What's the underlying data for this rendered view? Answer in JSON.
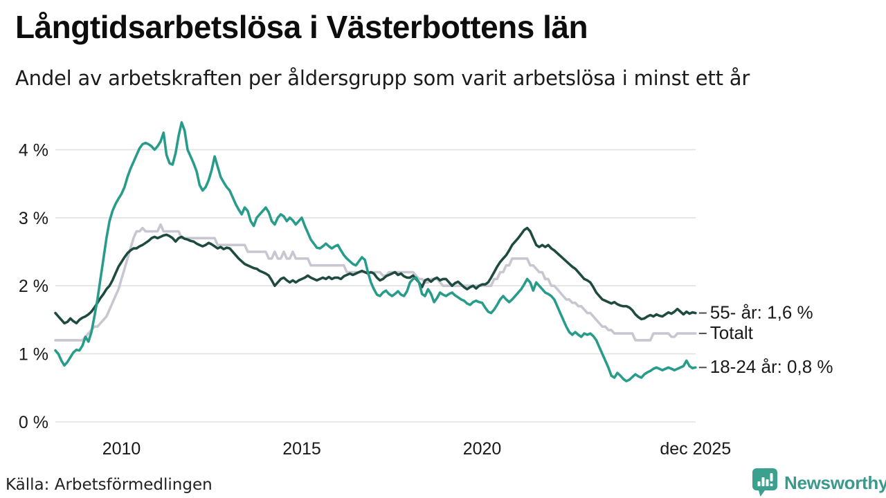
{
  "header": {
    "title": "Långtidsarbetslösa i Västerbottens län",
    "subtitle": "Andel av arbetskraften per åldersgrupp som varit arbetslösa i minst ett år"
  },
  "footer": {
    "source": "Källa: Arbetsförmedlingen",
    "brand": "Newsworthy",
    "brand_color": "#3a9a8a"
  },
  "chart_data": {
    "type": "line",
    "title": "Långtidsarbetslösa i Västerbottens län",
    "subtitle": "Andel av arbetskraften per åldersgrupp som varit arbetslösa i minst ett år",
    "unit": "%",
    "grid": true,
    "legend_position": "right-end-labels",
    "x_start": "2008-03",
    "x_end": "2025-12",
    "points_per_year": 12,
    "ylim": [
      0,
      4.6
    ],
    "y_ticks": [
      {
        "value": 0,
        "label": "0 %"
      },
      {
        "value": 1,
        "label": "1 %"
      },
      {
        "value": 2,
        "label": "2 %"
      },
      {
        "value": 3,
        "label": "3 %"
      },
      {
        "value": 4,
        "label": "4 %"
      }
    ],
    "x_ticks": [
      {
        "t": 2010.0,
        "label": "2010"
      },
      {
        "t": 2015.0,
        "label": "2015"
      },
      {
        "t": 2020.0,
        "label": "2020"
      },
      {
        "t": 2025.917,
        "label": "dec 2025"
      }
    ],
    "series": [
      {
        "name": "Totalt",
        "color": "#c7c6d1",
        "end_label": "Totalt",
        "values": [
          1.2,
          1.2,
          1.2,
          1.2,
          1.2,
          1.2,
          1.2,
          1.2,
          1.2,
          1.2,
          1.25,
          1.3,
          1.35,
          1.4,
          1.4,
          1.45,
          1.5,
          1.55,
          1.65,
          1.75,
          1.85,
          1.95,
          2.1,
          2.25,
          2.4,
          2.55,
          2.7,
          2.8,
          2.8,
          2.85,
          2.8,
          2.8,
          2.8,
          2.8,
          2.8,
          2.9,
          2.8,
          2.8,
          2.8,
          2.8,
          2.8,
          2.8,
          2.7,
          2.7,
          2.7,
          2.7,
          2.7,
          2.7,
          2.7,
          2.7,
          2.7,
          2.7,
          2.7,
          2.7,
          2.6,
          2.6,
          2.6,
          2.6,
          2.6,
          2.6,
          2.6,
          2.6,
          2.6,
          2.6,
          2.5,
          2.5,
          2.5,
          2.5,
          2.5,
          2.5,
          2.5,
          2.4,
          2.4,
          2.5,
          2.4,
          2.4,
          2.5,
          2.4,
          2.4,
          2.5,
          2.4,
          2.4,
          2.4,
          2.4,
          2.4,
          2.3,
          2.3,
          2.3,
          2.3,
          2.3,
          2.3,
          2.3,
          2.3,
          2.3,
          2.3,
          2.3,
          2.3,
          2.2,
          2.2,
          2.2,
          2.2,
          2.2,
          2.2,
          2.2,
          2.2,
          2.2,
          2.2,
          2.2,
          2.2,
          2.15,
          2.15,
          2.2,
          2.2,
          2.2,
          2.2,
          2.2,
          2.2,
          2.2,
          2.2,
          2.2,
          2.15,
          2.1,
          2.1,
          2.05,
          2.05,
          2.1,
          2.1,
          2.1,
          2.05,
          2.0,
          2.0,
          2.0,
          2.0,
          2.0,
          2.0,
          2.0,
          2.0,
          2.0,
          2.0,
          2.0,
          2.0,
          2.0,
          2.0,
          2.0,
          2.0,
          2.0,
          2.1,
          2.1,
          2.2,
          2.2,
          2.3,
          2.3,
          2.4,
          2.4,
          2.4,
          2.4,
          2.4,
          2.4,
          2.3,
          2.3,
          2.25,
          2.2,
          2.2,
          2.1,
          2.1,
          2.0,
          2.0,
          1.95,
          1.9,
          1.85,
          1.8,
          1.8,
          1.75,
          1.75,
          1.7,
          1.7,
          1.65,
          1.6,
          1.6,
          1.55,
          1.5,
          1.45,
          1.4,
          1.4,
          1.35,
          1.35,
          1.3,
          1.3,
          1.3,
          1.3,
          1.3,
          1.3,
          1.3,
          1.2,
          1.2,
          1.2,
          1.2,
          1.2,
          1.2,
          1.3,
          1.3,
          1.3,
          1.3,
          1.3,
          1.3,
          1.25,
          1.25,
          1.3,
          1.3,
          1.3,
          1.3,
          1.3,
          1.3,
          1.3
        ]
      },
      {
        "name": "55- år",
        "color": "#1f4a40",
        "end_label": "55- år: 1,6 %",
        "end_value": "1,6 %",
        "values": [
          1.6,
          1.55,
          1.5,
          1.45,
          1.47,
          1.52,
          1.48,
          1.45,
          1.5,
          1.53,
          1.55,
          1.58,
          1.62,
          1.68,
          1.75,
          1.82,
          1.88,
          1.95,
          2.0,
          2.08,
          2.18,
          2.28,
          2.35,
          2.42,
          2.48,
          2.52,
          2.55,
          2.55,
          2.58,
          2.6,
          2.63,
          2.66,
          2.7,
          2.72,
          2.7,
          2.72,
          2.74,
          2.75,
          2.73,
          2.7,
          2.65,
          2.7,
          2.72,
          2.69,
          2.68,
          2.66,
          2.65,
          2.62,
          2.6,
          2.58,
          2.6,
          2.63,
          2.61,
          2.58,
          2.55,
          2.57,
          2.54,
          2.56,
          2.55,
          2.5,
          2.45,
          2.4,
          2.36,
          2.32,
          2.3,
          2.28,
          2.26,
          2.25,
          2.22,
          2.2,
          2.18,
          2.15,
          2.08,
          2.0,
          2.05,
          2.1,
          2.12,
          2.08,
          2.05,
          2.08,
          2.05,
          2.08,
          2.1,
          2.12,
          2.15,
          2.12,
          2.1,
          2.08,
          2.1,
          2.12,
          2.1,
          2.13,
          2.1,
          2.12,
          2.12,
          2.1,
          2.14,
          2.16,
          2.18,
          2.16,
          2.18,
          2.2,
          2.22,
          2.2,
          2.18,
          2.2,
          2.18,
          2.12,
          2.08,
          2.1,
          2.14,
          2.16,
          2.18,
          2.2,
          2.16,
          2.18,
          2.14,
          2.12,
          2.12,
          2.15,
          2.1,
          2.05,
          1.98,
          2.08,
          2.1,
          2.06,
          2.1,
          2.12,
          2.08,
          2.1,
          2.1,
          2.05,
          2.0,
          2.04,
          2.06,
          2.02,
          1.98,
          1.95,
          1.98,
          2.0,
          1.96,
          2.0,
          2.02,
          2.02,
          2.05,
          2.12,
          2.2,
          2.28,
          2.35,
          2.4,
          2.45,
          2.52,
          2.6,
          2.65,
          2.7,
          2.76,
          2.82,
          2.85,
          2.8,
          2.7,
          2.6,
          2.57,
          2.6,
          2.57,
          2.6,
          2.55,
          2.52,
          2.48,
          2.44,
          2.4,
          2.36,
          2.32,
          2.28,
          2.25,
          2.2,
          2.15,
          2.1,
          2.08,
          2.05,
          1.98,
          1.9,
          1.85,
          1.8,
          1.78,
          1.76,
          1.74,
          1.76,
          1.73,
          1.71,
          1.7,
          1.7,
          1.68,
          1.64,
          1.58,
          1.54,
          1.51,
          1.52,
          1.55,
          1.57,
          1.55,
          1.58,
          1.56,
          1.55,
          1.58,
          1.61,
          1.59,
          1.62,
          1.66,
          1.62,
          1.58,
          1.62,
          1.59,
          1.61,
          1.6
        ]
      },
      {
        "name": "18-24 år",
        "color": "#289c8b",
        "end_label": "18-24 år: 0,8 %",
        "end_value": "0,8 %",
        "values": [
          1.05,
          1.0,
          0.9,
          0.83,
          0.88,
          0.95,
          1.02,
          1.06,
          1.05,
          1.12,
          1.25,
          1.18,
          1.32,
          1.55,
          1.8,
          2.1,
          2.4,
          2.7,
          2.95,
          3.1,
          3.2,
          3.28,
          3.35,
          3.45,
          3.6,
          3.72,
          3.82,
          3.92,
          4.02,
          4.08,
          4.1,
          4.08,
          4.05,
          4.0,
          4.05,
          4.12,
          4.25,
          3.92,
          3.8,
          3.78,
          3.95,
          4.2,
          4.4,
          4.28,
          4.0,
          3.9,
          3.8,
          3.68,
          3.48,
          3.4,
          3.45,
          3.55,
          3.7,
          3.9,
          3.75,
          3.6,
          3.52,
          3.45,
          3.4,
          3.3,
          3.2,
          3.12,
          3.05,
          3.15,
          3.1,
          2.95,
          2.88,
          3.0,
          3.05,
          3.1,
          3.15,
          3.08,
          2.95,
          2.9,
          3.0,
          3.05,
          3.02,
          2.95,
          3.0,
          2.96,
          2.9,
          2.95,
          3.0,
          2.88,
          2.78,
          2.68,
          2.62,
          2.56,
          2.55,
          2.58,
          2.62,
          2.58,
          2.55,
          2.58,
          2.6,
          2.52,
          2.45,
          2.4,
          2.36,
          2.32,
          2.3,
          2.36,
          2.42,
          2.38,
          2.2,
          2.05,
          1.95,
          1.87,
          1.85,
          1.9,
          1.93,
          1.88,
          1.85,
          1.88,
          1.92,
          1.87,
          1.85,
          1.92,
          2.05,
          2.1,
          2.12,
          2.05,
          1.88,
          1.85,
          1.95,
          1.88,
          1.76,
          1.82,
          1.9,
          1.87,
          1.85,
          1.88,
          1.9,
          1.86,
          1.83,
          1.8,
          1.78,
          1.74,
          1.72,
          1.76,
          1.78,
          1.76,
          1.75,
          1.68,
          1.62,
          1.6,
          1.65,
          1.72,
          1.8,
          1.85,
          1.8,
          1.76,
          1.8,
          1.85,
          1.9,
          1.95,
          2.02,
          2.1,
          2.05,
          1.93,
          2.05,
          2.0,
          1.95,
          1.9,
          1.88,
          1.85,
          1.8,
          1.7,
          1.6,
          1.5,
          1.4,
          1.32,
          1.28,
          1.32,
          1.28,
          1.25,
          1.3,
          1.28,
          1.3,
          1.26,
          1.2,
          1.1,
          1.0,
          0.9,
          0.8,
          0.68,
          0.65,
          0.72,
          0.68,
          0.63,
          0.6,
          0.62,
          0.66,
          0.7,
          0.67,
          0.65,
          0.7,
          0.73,
          0.75,
          0.78,
          0.8,
          0.78,
          0.76,
          0.78,
          0.8,
          0.78,
          0.76,
          0.78,
          0.8,
          0.82,
          0.9,
          0.82,
          0.79,
          0.8
        ]
      }
    ]
  }
}
